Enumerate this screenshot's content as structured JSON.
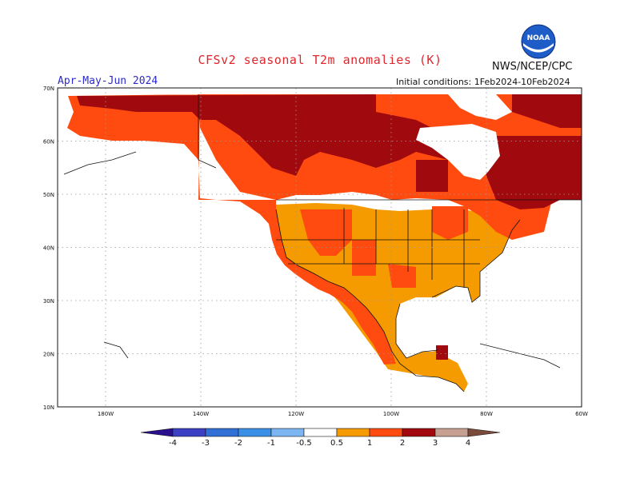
{
  "header": {
    "title": "CFSv2 seasonal T2m anomalies (K)",
    "agency": "NWS/NCEP/CPC",
    "season": "Apr-May-Jun 2024",
    "initial_conditions": "Initial conditions: 1Feb2024-10Feb2024",
    "logo_text": "NOAA"
  },
  "map": {
    "lat_labels": [
      "70N",
      "60N",
      "50N",
      "40N",
      "30N",
      "20N",
      "10N"
    ],
    "lon_labels": [
      "180W",
      "140W",
      "120W",
      "100W",
      "80W",
      "60W"
    ],
    "lon_range": [
      "190W",
      "60W"
    ],
    "lat_range": [
      "10N",
      "70N"
    ],
    "gridlines": "dotted"
  },
  "colorbar": {
    "tick_labels": [
      "-4",
      "-3",
      "-2",
      "-1",
      "-0.5",
      "0.5",
      "1",
      "2",
      "3",
      "4"
    ],
    "bins": [
      {
        "range": "< -4",
        "color": "#2a0f8f"
      },
      {
        "range": "-4 to -3",
        "color": "#3b3fc4"
      },
      {
        "range": "-3 to -2",
        "color": "#2f6fd6"
      },
      {
        "range": "-2 to -1",
        "color": "#3a8fe6"
      },
      {
        "range": "-1 to -0.5",
        "color": "#7cb6f2"
      },
      {
        "range": "-0.5 to 0.5",
        "color": "#ffffff"
      },
      {
        "range": "0.5 to 1",
        "color": "#f59b00"
      },
      {
        "range": "1 to 2",
        "color": "#ff4b0f"
      },
      {
        "range": "2 to 3",
        "color": "#a0090d"
      },
      {
        "range": "3 to 4",
        "color": "#c8a092"
      },
      {
        "range": "> 4",
        "color": "#7a4a3a"
      }
    ]
  },
  "colors": {
    "anom_0_5_to_1": "#f59b00",
    "anom_1_to_2": "#ff4b0f",
    "anom_2_to_3": "#a0090d",
    "neutral": "#ffffff",
    "title_red": "#e2252b",
    "season_blue": "#2a2ad0"
  }
}
